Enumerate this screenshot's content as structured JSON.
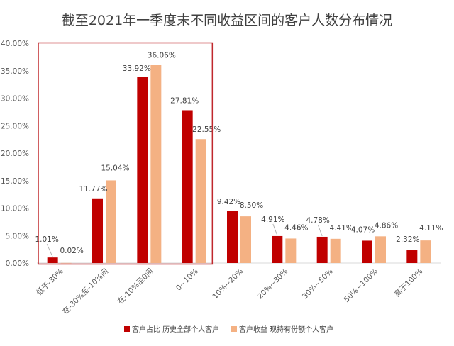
{
  "colors": {
    "series1": "#c00000",
    "series2": "#f4b183",
    "highlight_box": "#c0282d",
    "axis_text": "#595959",
    "grid": "#d9d9d9"
  },
  "chart_data": {
    "type": "bar",
    "title": "截至2021年一季度末不同收益区间的客户人数分布情况",
    "categories": [
      "低于-30%",
      "在-30%至-10%间",
      "在-10%至0间",
      "0~10%",
      "10%~20%",
      "20%~30%",
      "30%~50%",
      "50%~100%",
      "高于100%"
    ],
    "series": [
      {
        "name": "客户占比 历史全部个人客户",
        "values": [
          1.01,
          11.77,
          33.92,
          27.81,
          9.42,
          4.91,
          4.78,
          4.07,
          2.32
        ],
        "labels": [
          "1.01%",
          "11.77%",
          "33.92%",
          "27.81%",
          "9.42%",
          "4.91%",
          "4.78%",
          "4.07%",
          "2.32%"
        ],
        "color": "#c00000"
      },
      {
        "name": "客户收益 现持有份额个人客户",
        "values": [
          0.02,
          15.04,
          36.06,
          22.55,
          8.5,
          4.46,
          4.41,
          4.86,
          4.11
        ],
        "labels": [
          "0.02%",
          "15.04%",
          "36.06%",
          "22.55%",
          "8.50%",
          "4.46%",
          "4.41%",
          "4.86%",
          "4.11%"
        ],
        "color": "#f4b183"
      }
    ],
    "y_ticks": [
      "0.00%",
      "5.00%",
      "10.00%",
      "15.00%",
      "20.00%",
      "25.00%",
      "30.00%",
      "35.00%",
      "40.00%"
    ],
    "ylim": [
      0,
      40
    ],
    "legend_position": "bottom",
    "highlight_box_categories": [
      0,
      3
    ]
  }
}
